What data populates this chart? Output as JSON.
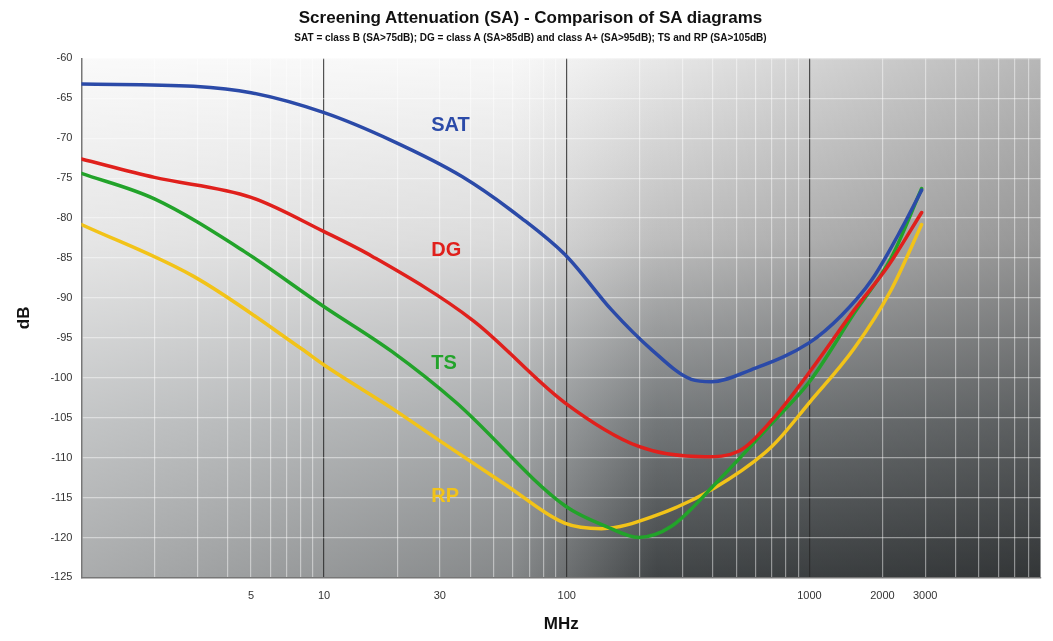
{
  "chart_data": {
    "type": "line",
    "title": "Screening Attenuation (SA) - Comparison of SA diagrams",
    "subtitle": "SAT = class B (SA>75dB); DG = class A (SA>85dB) and class A+ (SA>95dB); TS and RP (SA>105dB)",
    "xlabel": "MHz",
    "ylabel": "dB",
    "log": "x",
    "grid": true,
    "legend": false,
    "marker": "none",
    "line_style": "solid",
    "xlim": [
      1,
      9000
    ],
    "ylim": [
      -125,
      -60
    ],
    "xticks": [
      {
        "value": 1,
        "label": null
      },
      {
        "value": 2,
        "label": null
      },
      {
        "value": 3,
        "label": null
      },
      {
        "value": 4,
        "label": null
      },
      5,
      {
        "value": 6,
        "label": null
      },
      {
        "value": 7,
        "label": null
      },
      {
        "value": 8,
        "label": null
      },
      {
        "value": 9,
        "label": null
      },
      10,
      {
        "value": 20,
        "label": null
      },
      30,
      {
        "value": 40,
        "label": null
      },
      {
        "value": 50,
        "label": null
      },
      {
        "value": 60,
        "label": null
      },
      {
        "value": 70,
        "label": null
      },
      {
        "value": 80,
        "label": null
      },
      {
        "value": 90,
        "label": null
      },
      100,
      {
        "value": 200,
        "label": null
      },
      {
        "value": 300,
        "label": null
      },
      {
        "value": 400,
        "label": null
      },
      {
        "value": 500,
        "label": null
      },
      {
        "value": 600,
        "label": null
      },
      {
        "value": 700,
        "label": null
      },
      {
        "value": 800,
        "label": null
      },
      {
        "value": 900,
        "label": null
      },
      1000,
      2000,
      3000,
      {
        "value": 4000,
        "label": null
      },
      {
        "value": 5000,
        "label": null
      },
      {
        "value": 6000,
        "label": null
      },
      {
        "value": 7000,
        "label": null
      },
      {
        "value": 8000,
        "label": null
      },
      {
        "value": 9000,
        "label": null
      }
    ],
    "yticks": [
      -125,
      -120,
      -115,
      -110,
      -105,
      -100,
      -95,
      -90,
      -85,
      -80,
      -75,
      -70,
      -65,
      -60
    ],
    "series": [
      {
        "name": "SAT",
        "color": "#2b4aa8",
        "x": [
          1,
          2.9,
          5,
          10,
          19,
          37,
          65,
          100,
          153,
          224,
          326,
          395,
          575,
          1000,
          1355,
          1810,
          2410,
          2900
        ],
        "values": [
          -63.2,
          -63.5,
          -64.3,
          -66.8,
          -70.3,
          -74.8,
          -80,
          -84.8,
          -91.5,
          -96.5,
          -100.2,
          -100.5,
          -99,
          -95.6,
          -92.2,
          -87.7,
          -81.2,
          -76.5
        ]
      },
      {
        "name": "DG",
        "color": "#e0201c",
        "x": [
          1,
          2,
          5,
          10,
          15.8,
          41,
          98,
          198,
          370,
          510,
          700,
          1000,
          1530,
          2110,
          2900
        ],
        "values": [
          -72.6,
          -74.9,
          -77.4,
          -81.7,
          -84.8,
          -92.8,
          -103.1,
          -108.6,
          -109.9,
          -109.2,
          -105.3,
          -99.3,
          -91.5,
          -86,
          -79.3
        ]
      },
      {
        "name": "TS",
        "color": "#22a32a",
        "x": [
          1,
          2,
          4.7,
          10,
          19,
          35,
          98,
          145,
          198,
          270,
          406,
          700,
          1000,
          1530,
          2170,
          2900
        ],
        "values": [
          -74.4,
          -77.6,
          -84.2,
          -91.1,
          -96.7,
          -103.1,
          -116,
          -118.6,
          -120,
          -118.6,
          -113.4,
          -105.7,
          -100.5,
          -91.9,
          -85,
          -76.3
        ]
      },
      {
        "name": "RP",
        "color": "#f2c318",
        "x": [
          1,
          2.9,
          8.1,
          10,
          19,
          30,
          56,
          98,
          139,
          230,
          406,
          700,
          1000,
          1530,
          2170,
          2900
        ],
        "values": [
          -80.8,
          -87.3,
          -96.4,
          -98.4,
          -103.8,
          -107.9,
          -113.4,
          -118.2,
          -118.9,
          -117.3,
          -113.8,
          -108.6,
          -103.1,
          -96.3,
          -89,
          -80.8
        ]
      }
    ]
  }
}
